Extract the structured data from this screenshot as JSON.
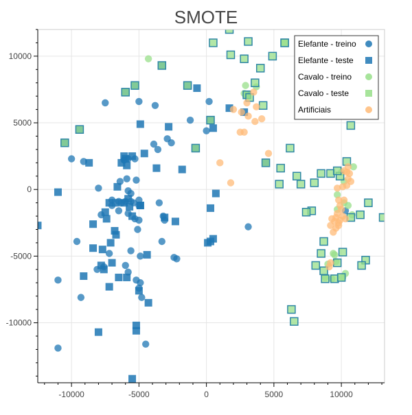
{
  "chart_data": {
    "type": "scatter",
    "title": "SMOTE",
    "xlim": [
      -12500,
      13200
    ],
    "ylim": [
      -14500,
      12000
    ],
    "xticks": [
      -10000,
      -5000,
      0,
      5000,
      10000
    ],
    "yticks": [
      -10000,
      -5000,
      0,
      5000,
      10000
    ],
    "xtick_labels": [
      "-10000",
      "-5000",
      "0",
      "5000",
      "10000"
    ],
    "ytick_labels": [
      "-10000",
      "-5000",
      "0",
      "5000",
      "10000"
    ],
    "grid": true,
    "legend_position": "top-right",
    "series": [
      {
        "name": "Elefante - treino",
        "marker": "circle",
        "color": "#1f77b4",
        "points": [
          [
            -7500,
            6500
          ],
          [
            -5000,
            6600
          ],
          [
            -3800,
            6300
          ],
          [
            -1200,
            5200
          ],
          [
            200,
            6600
          ],
          [
            -2900,
            3800
          ],
          [
            -3900,
            3400
          ],
          [
            -3600,
            3000
          ],
          [
            -2600,
            3500
          ],
          [
            -5800,
            2300
          ],
          [
            -6100,
            2200
          ],
          [
            -10000,
            2300
          ],
          [
            -9100,
            2100
          ],
          [
            -5300,
            2300
          ],
          [
            -5900,
            800
          ],
          [
            -5200,
            700
          ],
          [
            -8000,
            100
          ],
          [
            -5800,
            -100
          ],
          [
            -5600,
            -300
          ],
          [
            -7000,
            -800
          ],
          [
            -6500,
            -900
          ],
          [
            -6300,
            -1000
          ],
          [
            -5600,
            -900
          ],
          [
            -5400,
            -1000
          ],
          [
            -5000,
            -1200
          ],
          [
            -3500,
            -1000
          ],
          [
            -6500,
            -1600
          ],
          [
            -7800,
            -1900
          ],
          [
            -5800,
            -1800
          ],
          [
            -5300,
            -2200
          ],
          [
            -5000,
            -2300
          ],
          [
            -3200,
            -2000
          ],
          [
            -3100,
            -2300
          ],
          [
            -9600,
            -3900
          ],
          [
            -5100,
            -3000
          ],
          [
            -3300,
            -3900
          ],
          [
            -5600,
            -4600
          ],
          [
            -7200,
            -4800
          ],
          [
            -4900,
            -5000
          ],
          [
            -8100,
            -6000
          ],
          [
            -6000,
            -5700
          ],
          [
            -7600,
            -5800
          ],
          [
            -2400,
            -5100
          ],
          [
            -2200,
            -5200
          ],
          [
            -5800,
            -6200
          ],
          [
            -5200,
            -6800
          ],
          [
            -4900,
            -7000
          ],
          [
            -11000,
            -6800
          ],
          [
            -5000,
            -7400
          ],
          [
            -4800,
            -8100
          ],
          [
            -9300,
            -8100
          ],
          [
            -11000,
            -11900
          ],
          [
            -4500,
            -11600
          ],
          [
            3100,
            -2800
          ],
          [
            10300,
            -1600
          ],
          [
            0,
            4400
          ],
          [
            -6400,
            600
          ],
          [
            -6000,
            -900
          ],
          [
            -7000,
            -1200
          ],
          [
            -5000,
            -800
          ]
        ]
      },
      {
        "name": "Elefante - teste",
        "marker": "square",
        "color": "#1f77b4",
        "points": [
          [
            -5300,
            7800
          ],
          [
            -6000,
            7300
          ],
          [
            -3300,
            9300
          ],
          [
            -1400,
            7800
          ],
          [
            -700,
            7600
          ],
          [
            1700,
            6100
          ],
          [
            -4900,
            4900
          ],
          [
            -9400,
            4500
          ],
          [
            -10500,
            3500
          ],
          [
            300,
            5200
          ],
          [
            500,
            4600
          ],
          [
            -800,
            3100
          ],
          [
            3000,
            7100
          ],
          [
            2800,
            5800
          ],
          [
            4400,
            2000
          ],
          [
            -2800,
            4700
          ],
          [
            -1800,
            1500
          ],
          [
            -3700,
            1600
          ],
          [
            -4600,
            2700
          ],
          [
            -5500,
            2500
          ],
          [
            -6000,
            2300
          ],
          [
            -5900,
            1800
          ],
          [
            -6300,
            2000
          ],
          [
            -6100,
            2500
          ],
          [
            -8700,
            2000
          ],
          [
            -11000,
            -200
          ],
          [
            -6600,
            200
          ],
          [
            -5800,
            -700
          ],
          [
            -6100,
            -1000
          ],
          [
            -7200,
            -1000
          ],
          [
            -6700,
            -1000
          ],
          [
            -5700,
            -1300
          ],
          [
            -4900,
            -1200
          ],
          [
            -4900,
            -1200
          ],
          [
            -7500,
            -1700
          ],
          [
            -5500,
            -2000
          ],
          [
            -2300,
            -2400
          ],
          [
            -3100,
            -2100
          ],
          [
            -7400,
            -2200
          ],
          [
            -8400,
            -2600
          ],
          [
            -6800,
            -3100
          ],
          [
            -6700,
            -3400
          ],
          [
            -8400,
            -4400
          ],
          [
            -7700,
            -4500
          ],
          [
            -7100,
            -4000
          ],
          [
            -4400,
            -4900
          ],
          [
            -7800,
            -5700
          ],
          [
            -7600,
            -6000
          ],
          [
            -7000,
            -5500
          ],
          [
            -9100,
            -6500
          ],
          [
            -6500,
            -6600
          ],
          [
            -5900,
            -6600
          ],
          [
            -7200,
            -7300
          ],
          [
            -5000,
            -7600
          ],
          [
            -4300,
            -8500
          ],
          [
            -5200,
            -10200
          ],
          [
            -5200,
            -10600
          ],
          [
            -8000,
            -10700
          ],
          [
            -5500,
            -14200
          ],
          [
            -12500,
            -2700
          ],
          [
            700,
            -300
          ],
          [
            300,
            -1400
          ],
          [
            500,
            -3700
          ],
          [
            100,
            -4000
          ],
          [
            300,
            -3900
          ]
        ]
      },
      {
        "name": "Cavalo - treino",
        "marker": "circle",
        "color": "#98df8a",
        "points": [
          [
            -4300,
            9800
          ],
          [
            2800,
            7200
          ],
          [
            3700,
            7700
          ],
          [
            2900,
            7800
          ],
          [
            9700,
            -400
          ],
          [
            10900,
            1700
          ],
          [
            10200,
            600
          ],
          [
            10000,
            1300
          ],
          [
            9400,
            -4800
          ],
          [
            9600,
            -5400
          ],
          [
            9000,
            -5600
          ],
          [
            8800,
            -6600
          ],
          [
            9300,
            -6700
          ],
          [
            10100,
            -6600
          ],
          [
            10300,
            -6300
          ],
          [
            9500,
            -4900
          ],
          [
            10800,
            -1900
          ],
          [
            9700,
            -1500
          ],
          [
            10200,
            -1000
          ],
          [
            10500,
            -1200
          ]
        ]
      },
      {
        "name": "Cavalo - teste",
        "marker": "square",
        "color": "#98df8a",
        "points": [
          [
            1700,
            12000
          ],
          [
            3100,
            11100
          ],
          [
            5800,
            11000
          ],
          [
            500,
            11000
          ],
          [
            1800,
            10100
          ],
          [
            2800,
            9800
          ],
          [
            4900,
            10000
          ],
          [
            3600,
            8000
          ],
          [
            4000,
            9100
          ],
          [
            -6000,
            7300
          ],
          [
            -3300,
            9300
          ],
          [
            -1400,
            7800
          ],
          [
            3000,
            7100
          ],
          [
            3200,
            6900
          ],
          [
            4200,
            6300
          ],
          [
            10700,
            4800
          ],
          [
            6200,
            3100
          ],
          [
            4400,
            2000
          ],
          [
            5500,
            1600
          ],
          [
            6700,
            1000
          ],
          [
            7000,
            400
          ],
          [
            5400,
            400
          ],
          [
            8500,
            1200
          ],
          [
            9200,
            1200
          ],
          [
            9900,
            1000
          ],
          [
            10400,
            2100
          ],
          [
            9700,
            1400
          ],
          [
            8000,
            500
          ],
          [
            7800,
            -1600
          ],
          [
            7400,
            -1700
          ],
          [
            12000,
            -1000
          ],
          [
            11400,
            -1900
          ],
          [
            13100,
            -2100
          ],
          [
            10700,
            -2100
          ],
          [
            8700,
            -3900
          ],
          [
            8500,
            -4800
          ],
          [
            10100,
            -4700
          ],
          [
            11800,
            -5300
          ],
          [
            11500,
            -5700
          ],
          [
            8100,
            -5700
          ],
          [
            9700,
            -5500
          ],
          [
            8700,
            -6100
          ],
          [
            9500,
            -6700
          ],
          [
            10000,
            -6600
          ],
          [
            8800,
            -6700
          ],
          [
            6300,
            -9000
          ],
          [
            6500,
            -9900
          ],
          [
            -5300,
            7800
          ],
          [
            -9400,
            4500
          ],
          [
            -10500,
            3500
          ],
          [
            300,
            5200
          ],
          [
            -800,
            3100
          ],
          [
            5800,
            11000
          ]
        ]
      },
      {
        "name": "Artificiais",
        "marker": "circle",
        "color": "#ffbb78",
        "points": [
          [
            3500,
            7300
          ],
          [
            3000,
            6500
          ],
          [
            3700,
            6200
          ],
          [
            2000,
            6000
          ],
          [
            2600,
            5800
          ],
          [
            3100,
            5500
          ],
          [
            3600,
            5100
          ],
          [
            4100,
            5300
          ],
          [
            2500,
            4300
          ],
          [
            2800,
            4300
          ],
          [
            4600,
            2700
          ],
          [
            1000,
            2000
          ],
          [
            1800,
            500
          ],
          [
            10500,
            1700
          ],
          [
            10400,
            1300
          ],
          [
            10600,
            1200
          ],
          [
            10200,
            1400
          ],
          [
            10700,
            600
          ],
          [
            10100,
            200
          ],
          [
            10400,
            300
          ],
          [
            9700,
            100
          ],
          [
            9800,
            -800
          ],
          [
            9900,
            -1200
          ],
          [
            10000,
            -1500
          ],
          [
            9700,
            -1800
          ],
          [
            9600,
            -2100
          ],
          [
            9300,
            -2200
          ],
          [
            9500,
            -2400
          ],
          [
            9200,
            -2700
          ],
          [
            9900,
            -2300
          ],
          [
            9600,
            -2900
          ],
          [
            9400,
            -3200
          ],
          [
            9800,
            -2700
          ],
          [
            9200,
            -5500
          ],
          [
            9100,
            -5800
          ],
          [
            10300,
            -2200
          ],
          [
            10100,
            -2000
          ],
          [
            9800,
            -2500
          ],
          [
            10200,
            -800
          ],
          [
            10500,
            800
          ]
        ]
      }
    ]
  },
  "colors": {
    "grid": "#e5e5e5",
    "frame": "#cccccc",
    "axis_text": "#444444",
    "title_text": "#444444",
    "square_outline_cavalo": "#2e86a6"
  }
}
